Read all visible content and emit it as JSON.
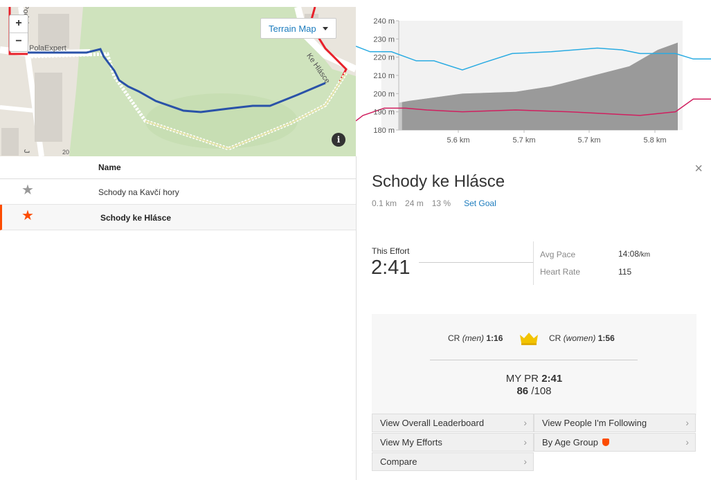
{
  "map": {
    "zoom_in": "+",
    "zoom_out": "−",
    "terrain_label": "Terrain Map",
    "info": "i",
    "labels": {
      "podol": "Podol",
      "polaexpert": "PolaExpert",
      "ke_hlasce": "Ke Hlásce",
      "letter_j": "J",
      "num_20": "20"
    }
  },
  "chart_data": {
    "type": "area",
    "y_ticks": [
      "240 m",
      "230 m",
      "220 m",
      "210 m",
      "200 m",
      "190 m",
      "180 m"
    ],
    "ylim": [
      180,
      240
    ],
    "x_ticks": [
      "5.6 km",
      "5.7 km",
      "5.7 km",
      "5.8 km"
    ],
    "series": [
      {
        "color": "#999999",
        "x": [
          0.0,
          0.06,
          0.15,
          0.3,
          0.45,
          0.55,
          0.65,
          0.77,
          0.85,
          0.95,
          1.0
        ],
        "values": [
          195,
          195,
          196,
          200,
          201,
          204,
          209,
          215,
          224,
          228,
          228
        ]
      },
      {
        "color": "#29abe2",
        "x": [
          0.0,
          0.04,
          0.1,
          0.17,
          0.22,
          0.3,
          0.36,
          0.44,
          0.55,
          0.68,
          0.75,
          0.8,
          0.9,
          0.95,
          1.0
        ],
        "values": [
          226,
          223,
          223,
          218,
          218,
          213,
          217,
          222,
          223,
          225,
          224,
          222,
          222,
          219,
          219
        ]
      },
      {
        "color": "#d01f5f",
        "x": [
          0.0,
          0.02,
          0.08,
          0.14,
          0.2,
          0.3,
          0.45,
          0.6,
          0.7,
          0.8,
          0.9,
          0.95,
          1.0
        ],
        "values": [
          185,
          188,
          192,
          192,
          191,
          190,
          191,
          190,
          189,
          188,
          190,
          197,
          197
        ]
      }
    ],
    "highlight_range": [
      0.13,
      0.92
    ]
  },
  "table": {
    "header_name": "Name",
    "rows": [
      {
        "star": "★",
        "name": "Schody na Kavčí hory",
        "active": false
      },
      {
        "star": "★",
        "name": "Schody ke Hlásce",
        "active": true
      }
    ]
  },
  "detail": {
    "close": "×",
    "title": "Schody ke Hlásce",
    "distance": "0.1 km",
    "elevation": "24 m",
    "grade": "13 %",
    "set_goal": "Set Goal",
    "effort_label": "This Effort",
    "effort_time": "2:41",
    "avg_pace_label": "Avg Pace",
    "avg_pace_value": "14:08",
    "avg_pace_unit": "/km",
    "heart_rate_label": "Heart Rate",
    "heart_rate_value": "115",
    "cr_prefix": "CR",
    "cr_men_label": "(men)",
    "cr_men_time": "1:16",
    "cr_women_label": "(women)",
    "cr_women_time": "1:56",
    "pr_label": "MY PR",
    "pr_time": "2:41",
    "rank": "86",
    "rank_total": "/108",
    "links": {
      "overall": "View Overall Leaderboard",
      "following": "View People I'm Following",
      "my_efforts": "View My Efforts",
      "age_group": "By Age Group",
      "compare": "Compare"
    },
    "chevron": "›"
  }
}
